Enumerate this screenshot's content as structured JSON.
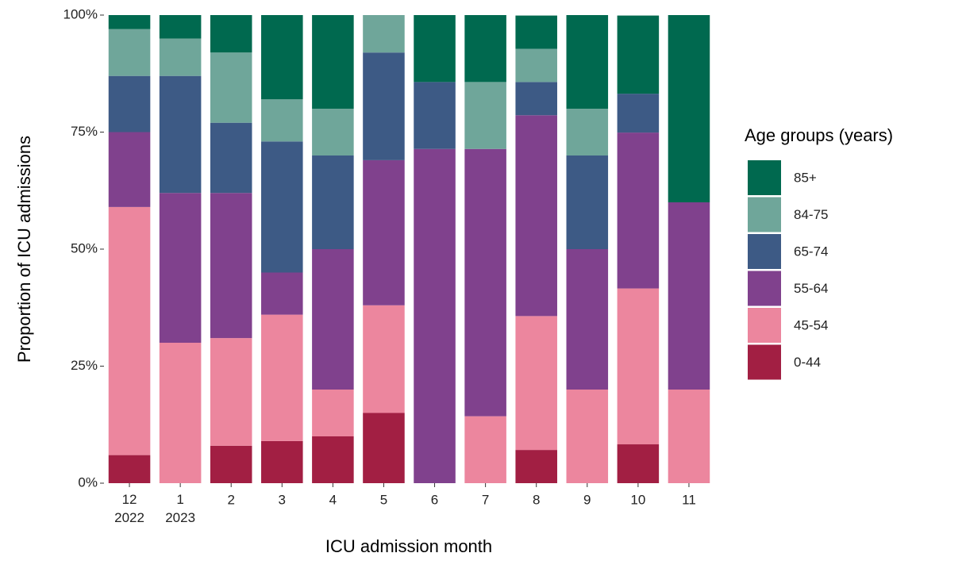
{
  "chart_data": {
    "type": "stacked_bar",
    "x_label": "ICU admission month",
    "y_label": "Proportion of ICU admissions",
    "legend_title": "Age groups (years)",
    "categories": [
      "12\n2022",
      "1\n2023",
      "2",
      "3",
      "4",
      "5",
      "6",
      "7",
      "8",
      "9",
      "10",
      "11"
    ],
    "series": [
      {
        "name": "0-44",
        "color": "#a21f43",
        "values": [
          6,
          0,
          8,
          9,
          10,
          15,
          0,
          0,
          7.1,
          0,
          8.3,
          0
        ]
      },
      {
        "name": "45-54",
        "color": "#ec869e",
        "values": [
          53,
          30,
          23,
          27,
          10,
          23,
          0,
          14.3,
          28.6,
          20,
          33.3,
          20
        ]
      },
      {
        "name": "55-64",
        "color": "#80418d",
        "values": [
          16,
          32,
          31,
          9,
          30,
          31,
          71.4,
          57.1,
          42.9,
          30,
          33.3,
          40
        ]
      },
      {
        "name": "65-74",
        "color": "#3d5a85",
        "values": [
          12,
          25,
          15,
          28,
          20,
          23,
          14.3,
          0,
          7.1,
          20,
          8.3,
          0
        ]
      },
      {
        "name": "84-75",
        "color": "#6fa69a",
        "values": [
          10,
          8,
          15,
          9,
          10,
          8,
          0,
          14.3,
          7.1,
          10,
          0,
          0
        ]
      },
      {
        "name": "85+",
        "color": "#00694f",
        "values": [
          3,
          5,
          8,
          18,
          20,
          0,
          14.3,
          14.3,
          7.1,
          20,
          16.7,
          40
        ]
      }
    ],
    "ylim": [
      0,
      100
    ],
    "yticks": [
      {
        "value": 0,
        "label": "0%"
      },
      {
        "value": 25,
        "label": "25%"
      },
      {
        "value": 50,
        "label": "50%"
      },
      {
        "value": 75,
        "label": "75%"
      },
      {
        "value": 100,
        "label": "100%"
      }
    ]
  }
}
